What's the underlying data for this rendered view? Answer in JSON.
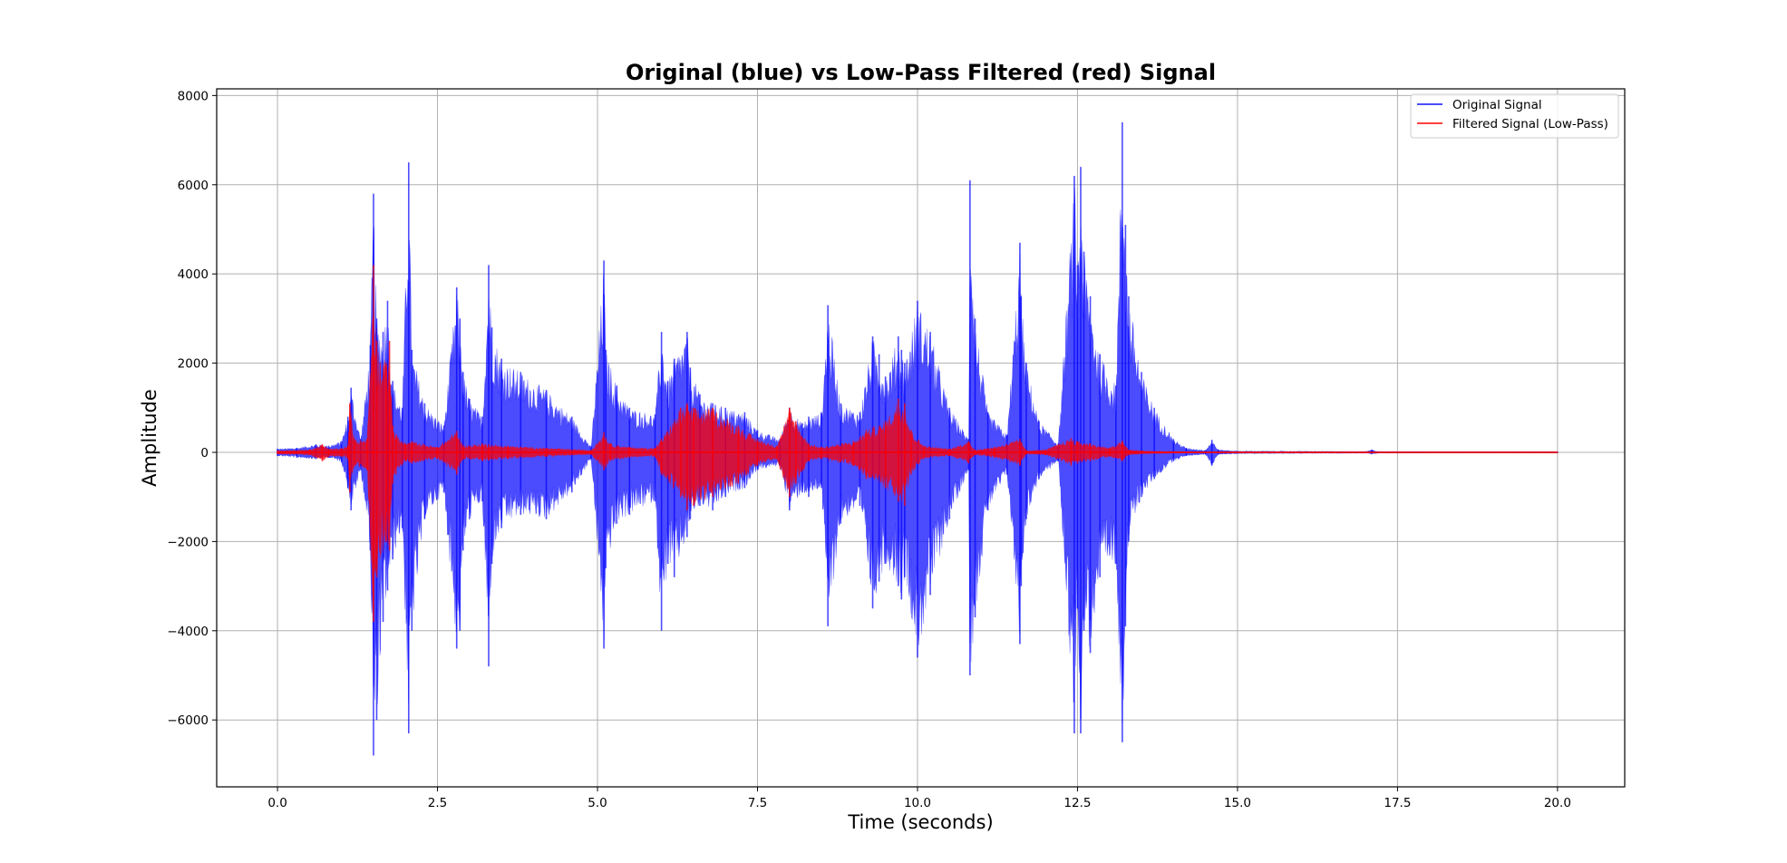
{
  "chart_data": {
    "type": "line",
    "title": "Original (blue) vs Low-Pass Filtered (red) Signal",
    "xlabel": "Time (seconds)",
    "ylabel": "Amplitude",
    "xlim": [
      -0.95,
      21.05
    ],
    "ylim": [
      -7500,
      8150
    ],
    "xticks": [
      0.0,
      2.5,
      5.0,
      7.5,
      10.0,
      12.5,
      15.0,
      17.5,
      20.0
    ],
    "xtick_labels": [
      "0.0",
      "2.5",
      "5.0",
      "7.5",
      "10.0",
      "12.5",
      "15.0",
      "17.5",
      "20.0"
    ],
    "yticks": [
      -6000,
      -4000,
      -2000,
      0,
      2000,
      4000,
      6000,
      8000
    ],
    "ytick_labels": [
      "−6000",
      "−4000",
      "−2000",
      "0",
      "2000",
      "4000",
      "6000",
      "8000"
    ],
    "grid": true,
    "legend_position": "top-right",
    "series": [
      {
        "name": "Original Signal",
        "color": "#0000ff",
        "opacity": 0.7,
        "envelope": {
          "x": [
            0.0,
            0.3,
            0.6,
            0.8,
            1.0,
            1.1,
            1.15,
            1.3,
            1.45,
            1.5,
            1.55,
            1.65,
            1.72,
            1.8,
            1.95,
            2.05,
            2.1,
            2.3,
            2.6,
            2.8,
            2.85,
            2.9,
            3.0,
            3.2,
            3.3,
            3.35,
            3.5,
            3.8,
            4.2,
            4.6,
            4.9,
            5.1,
            5.13,
            5.3,
            5.5,
            5.9,
            6.0,
            6.1,
            6.2,
            6.4,
            6.45,
            6.6,
            6.8,
            7.0,
            7.3,
            7.5,
            7.85,
            8.0,
            8.2,
            8.3,
            8.5,
            8.6,
            8.8,
            9.1,
            9.3,
            9.4,
            9.5,
            9.7,
            9.75,
            9.8,
            10.0,
            10.2,
            10.5,
            10.8,
            10.82,
            10.9,
            11.1,
            11.4,
            11.6,
            11.62,
            11.7,
            11.9,
            12.2,
            12.45,
            12.5,
            12.55,
            12.6,
            12.7,
            12.85,
            13.1,
            13.2,
            13.25,
            13.3,
            13.5,
            13.7,
            14.0,
            14.2,
            14.5,
            14.6,
            14.7,
            15.0,
            16.0,
            17.0,
            17.1,
            17.2,
            18.0,
            19.0,
            20.0
          ],
          "upper": [
            80,
            100,
            180,
            150,
            250,
            800,
            1450,
            300,
            2400,
            5800,
            3000,
            2700,
            3400,
            1600,
            1000,
            6500,
            2300,
            1100,
            600,
            3700,
            3000,
            1800,
            1200,
            800,
            4200,
            2800,
            2100,
            1800,
            1400,
            800,
            120,
            4300,
            2300,
            1500,
            1000,
            850,
            2700,
            1600,
            2100,
            2700,
            1900,
            1300,
            1100,
            1000,
            900,
            500,
            300,
            1000,
            650,
            800,
            900,
            3300,
            1100,
            900,
            2600,
            2200,
            1700,
            2600,
            2300,
            2000,
            3400,
            2700,
            1000,
            300,
            6100,
            3000,
            900,
            400,
            4700,
            3500,
            2000,
            700,
            200,
            6200,
            4200,
            6400,
            4500,
            3500,
            2200,
            1500,
            7400,
            5100,
            3500,
            1800,
            1000,
            300,
            100,
            50,
            280,
            60,
            30,
            25,
            20,
            60,
            20,
            15,
            15,
            15
          ],
          "lower": [
            -80,
            -120,
            -150,
            -120,
            -220,
            -800,
            -1300,
            -400,
            -2200,
            -6800,
            -6000,
            -3800,
            -3100,
            -2400,
            -1700,
            -6300,
            -4000,
            -1500,
            -900,
            -4400,
            -4000,
            -2200,
            -1500,
            -1100,
            -4800,
            -2500,
            -1700,
            -1400,
            -1500,
            -900,
            -150,
            -4400,
            -2600,
            -1600,
            -1400,
            -1100,
            -4000,
            -2500,
            -2800,
            -1900,
            -1500,
            -1200,
            -1300,
            -1000,
            -800,
            -400,
            -300,
            -1300,
            -900,
            -1000,
            -800,
            -3900,
            -1600,
            -1200,
            -3500,
            -2900,
            -2500,
            -3000,
            -3300,
            -2800,
            -4600,
            -3200,
            -1500,
            -400,
            -5000,
            -3700,
            -1300,
            -500,
            -4300,
            -3000,
            -1500,
            -600,
            -200,
            -6300,
            -3500,
            -6300,
            -4000,
            -4500,
            -2800,
            -2500,
            -6500,
            -3900,
            -2000,
            -1000,
            -600,
            -200,
            -80,
            -50,
            -300,
            -50,
            -30,
            -25,
            -20,
            -40,
            -20,
            -15,
            -15,
            -15
          ]
        }
      },
      {
        "name": "Filtered Signal (Low-Pass)",
        "color": "#ff0000",
        "opacity": 0.75,
        "envelope": {
          "x": [
            0.0,
            0.5,
            0.7,
            0.8,
            1.0,
            1.1,
            1.13,
            1.2,
            1.4,
            1.5,
            1.55,
            1.7,
            1.75,
            1.8,
            1.85,
            2.0,
            2.1,
            2.5,
            2.8,
            2.9,
            3.2,
            3.3,
            3.6,
            4.2,
            4.9,
            5.1,
            5.2,
            5.5,
            5.9,
            6.0,
            6.3,
            6.4,
            6.5,
            6.8,
            7.2,
            7.5,
            7.8,
            8.0,
            8.1,
            8.3,
            8.5,
            9.0,
            9.2,
            9.5,
            9.7,
            9.8,
            9.9,
            10.1,
            10.5,
            10.8,
            10.9,
            11.2,
            11.6,
            11.7,
            12.0,
            12.4,
            12.5,
            12.7,
            13.0,
            13.2,
            13.3,
            13.6,
            14.0,
            14.5,
            15.0,
            20.0
          ],
          "upper": [
            40,
            60,
            180,
            80,
            90,
            150,
            1100,
            300,
            300,
            4200,
            2500,
            2000,
            2500,
            600,
            400,
            200,
            250,
            120,
            480,
            150,
            200,
            180,
            150,
            100,
            50,
            450,
            200,
            120,
            100,
            300,
            1000,
            1100,
            1000,
            1000,
            600,
            300,
            150,
            1000,
            700,
            200,
            120,
            250,
            500,
            700,
            1200,
            1100,
            500,
            150,
            80,
            250,
            60,
            120,
            300,
            40,
            60,
            320,
            250,
            200,
            100,
            260,
            60,
            30,
            20,
            10,
            8,
            8
          ],
          "lower": [
            -40,
            -60,
            -200,
            -100,
            -100,
            -150,
            -900,
            -300,
            -400,
            -3800,
            -2800,
            -2000,
            -2200,
            -700,
            -500,
            -200,
            -250,
            -150,
            -500,
            -150,
            -200,
            -180,
            -150,
            -100,
            -50,
            -400,
            -200,
            -120,
            -100,
            -500,
            -1000,
            -1300,
            -1200,
            -1000,
            -700,
            -300,
            -150,
            -1000,
            -700,
            -200,
            -150,
            -300,
            -600,
            -800,
            -1100,
            -1200,
            -500,
            -150,
            -80,
            -250,
            -60,
            -120,
            -300,
            -40,
            -60,
            -300,
            -250,
            -200,
            -100,
            -200,
            -60,
            -30,
            -20,
            -10,
            -8,
            -8
          ]
        }
      }
    ]
  }
}
